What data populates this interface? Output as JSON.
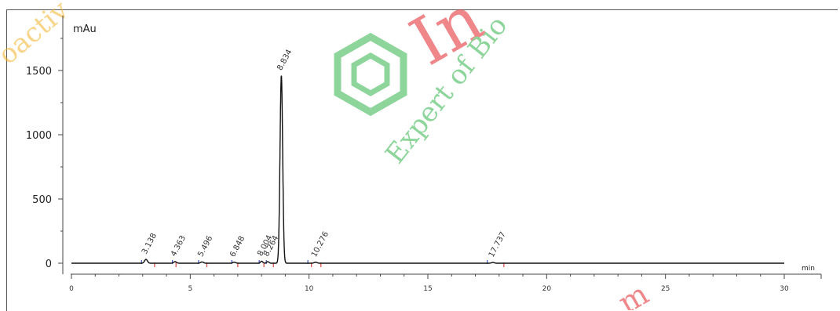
{
  "chart_data": {
    "type": "line",
    "ylabel": "mAu",
    "xlabel": "min",
    "xlim": [
      0,
      30
    ],
    "ylim": [
      -100,
      1800
    ],
    "x_ticks": [
      0,
      5,
      10,
      15,
      20,
      25,
      30
    ],
    "y_ticks": [
      0,
      500,
      1000,
      1500
    ],
    "peaks": [
      {
        "label": "3.138",
        "rt": 3.138,
        "height": 30,
        "width": 0.06
      },
      {
        "label": "4.363",
        "rt": 4.363,
        "height": 12,
        "width": 0.06
      },
      {
        "label": "5.496",
        "rt": 5.496,
        "height": 10,
        "width": 0.06
      },
      {
        "label": "6.848",
        "rt": 6.848,
        "height": 8,
        "width": 0.06
      },
      {
        "label": "8.004",
        "rt": 8.004,
        "height": 15,
        "width": 0.05
      },
      {
        "label": "8.264",
        "rt": 8.264,
        "height": 12,
        "width": 0.05
      },
      {
        "label": "8.834",
        "rt": 8.834,
        "height": 1460,
        "width": 0.055
      },
      {
        "label": "10.276",
        "rt": 10.276,
        "height": 8,
        "width": 0.06
      },
      {
        "label": "17.737",
        "rt": 17.737,
        "height": 6,
        "width": 0.06
      }
    ],
    "baseline_markers": {
      "red": [
        3.5,
        4.4,
        5.7,
        7.0,
        8.1,
        8.5,
        10.1,
        10.5,
        18.2
      ],
      "blue": [
        2.95,
        4.25,
        5.35,
        6.75,
        7.9,
        8.2,
        9.95,
        17.5
      ]
    },
    "colors": {
      "trace": "#111111",
      "marker_red": "#d9463b",
      "marker_blue": "#3a55c8"
    }
  },
  "watermark": {
    "big": "In",
    "arc": "Expert of Bio",
    "left": "oactiv",
    "bottom_right": "m",
    "colors": {
      "red": "#e0232a",
      "green": "#30b348",
      "orange": "#f0b126"
    }
  }
}
